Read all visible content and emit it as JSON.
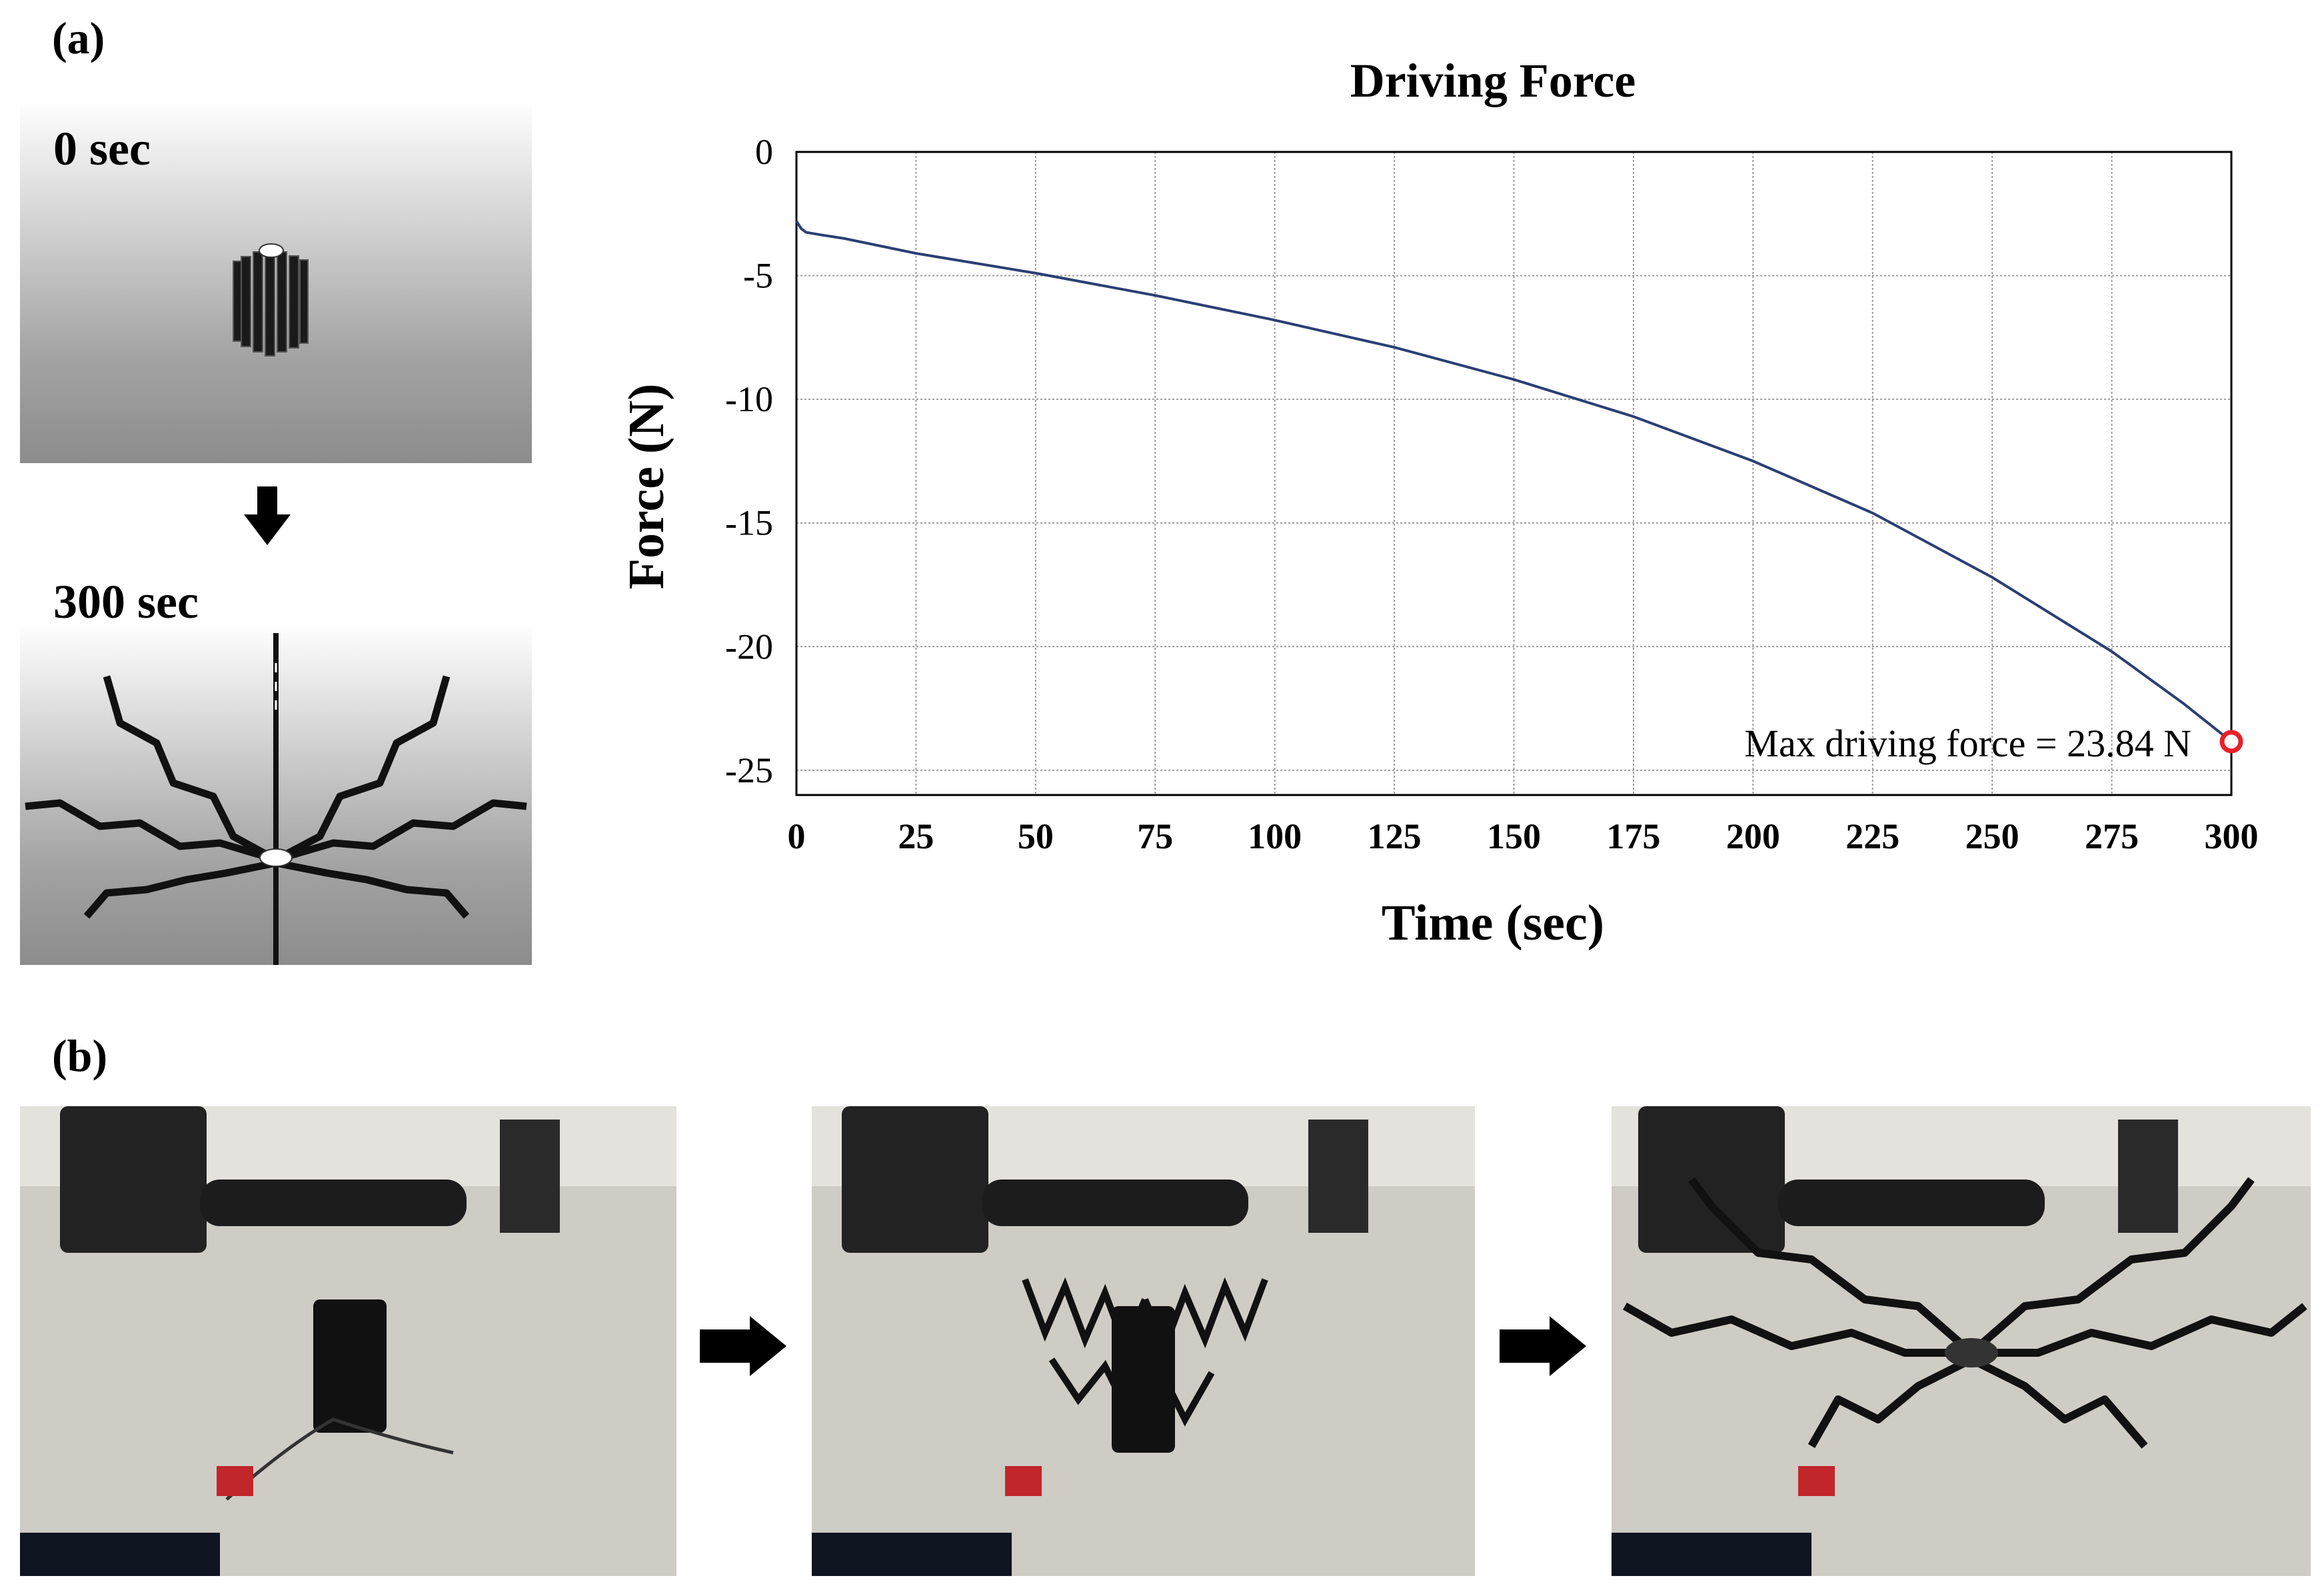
{
  "panel_a_label": "(a)",
  "panel_b_label": "(b)",
  "simulation": {
    "start_caption": "0 sec",
    "end_caption": "300 sec"
  },
  "colors": {
    "line": "#2b3f73",
    "marker": "#e8202a",
    "grid": "#9a9a9a"
  },
  "chart_data": {
    "type": "line",
    "title": "Driving Force",
    "xlabel": "Time (sec)",
    "ylabel": "Force (N)",
    "xlim": [
      0,
      300
    ],
    "ylim": [
      -26,
      0
    ],
    "xticks": [
      0,
      25,
      50,
      75,
      100,
      125,
      150,
      175,
      200,
      225,
      250,
      275,
      300
    ],
    "yticks": [
      0,
      -5,
      -10,
      -15,
      -20,
      -25
    ],
    "grid": true,
    "series": [
      {
        "x": [
          0,
          1,
          2,
          5,
          10,
          25,
          50,
          75,
          100,
          125,
          150,
          175,
          200,
          225,
          250,
          275,
          290,
          300
        ],
        "y": [
          -2.8,
          -3.1,
          -3.25,
          -3.35,
          -3.5,
          -4.1,
          -4.9,
          -5.8,
          -6.8,
          -7.9,
          -9.2,
          -10.7,
          -12.5,
          -14.6,
          -17.2,
          -20.2,
          -22.3,
          -23.84
        ]
      }
    ],
    "annotation": {
      "text": "Max driving force = 23.84 N",
      "x": 300,
      "y": -23.84
    }
  }
}
